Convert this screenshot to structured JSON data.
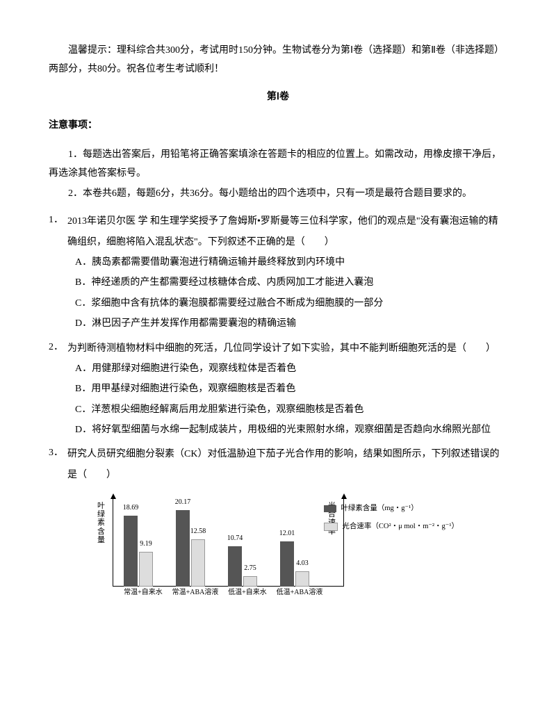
{
  "intro": "温馨提示：理科综合共300分，考试用时150分钟。生物试卷分为第Ⅰ卷（选择题）和第Ⅱ卷（非选择题）两部分，共80分。祝各位考生考试顺利！",
  "section_title": "第Ⅰ卷",
  "notice_label": "注意事项：",
  "notice_items": [
    "1．每题选出答案后，用铅笔将正确答案填涂在答题卡的相应的位置上。如需改动，用橡皮擦干净后，再选涂其他答案标号。",
    "2．本卷共6题，每题6分，共36分。每小题给出的四个选项中，只有一项是最符合题目要求的。"
  ],
  "questions": [
    {
      "num": "1．",
      "stem": "2013年诺贝尔医 学 和生理学奖授予了詹姆斯•罗斯曼等三位科学家，他们的观点是\"没有囊泡运输的精确组织，细胞将陷入混乱状态\"。下列叙述不正确的是（　　）",
      "options": [
        "A．胰岛素都需要借助囊泡进行精确运输并最终释放到内环境中",
        "B．神经递质的产生都需要经过核糖体合成、内质网加工才能进入囊泡",
        "C．浆细胞中含有抗体的囊泡膜都需要经过融合不断成为细胞膜的一部分",
        "D．淋巴因子产生并发挥作用都需要囊泡的精确运输"
      ]
    },
    {
      "num": "2．",
      "stem": "为判断待测植物材料中细胞的死活，几位同学设计了如下实验，其中不能判断细胞死活的是（　　）",
      "options": [
        "A．用健那绿对细胞进行染色，观察线粒体是否着色",
        "B．用甲基绿对细胞进行染色，观察细胞核是否着色",
        "C．洋葱根尖细胞经解离后用龙胆紫进行染色，观察细胞核是否着色",
        "D．将好氧型细菌与水绵一起制成装片，用极细的光束照射水绵，观察细菌是否趋向水绵照光部位"
      ]
    },
    {
      "num": "3．",
      "stem": "研究人员研究细胞分裂素（CK）对低温胁迫下茄子光合作用的影响，结果如图所示，下列叙述错误的是（　　）",
      "options": []
    }
  ],
  "chart": {
    "type": "bar",
    "y_left_label": "叶绿素含量",
    "y_right_label": "光合速率",
    "legend": [
      {
        "label": "叶绿素含量（mg・g⁻¹）",
        "color": "#555555"
      },
      {
        "label": "光合速率（CO²・μ mol・m⁻²・g⁻¹）",
        "color": "#dddddd"
      }
    ],
    "categories": [
      "常温+自来水",
      "常温+ABA溶液",
      "低温+自来水",
      "低温+ABA溶液"
    ],
    "series_dark": [
      18.69,
      20.17,
      10.74,
      12.01
    ],
    "series_light": [
      9.19,
      12.58,
      2.75,
      4.03
    ],
    "max_value": 22,
    "colors": {
      "dark": "#555555",
      "light": "#dddddd",
      "light_border": "#999999",
      "axis": "#000000"
    }
  }
}
